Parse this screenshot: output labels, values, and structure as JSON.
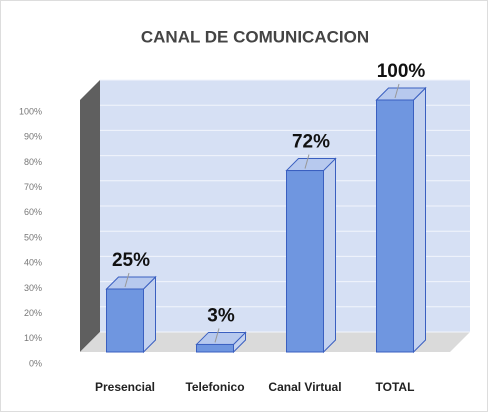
{
  "chart_data": {
    "type": "bar",
    "title": "CANAL DE COMUNICACION",
    "categories": [
      "Presencial",
      "Telefonico",
      "Canal Virtual",
      "TOTAL"
    ],
    "values": [
      25,
      3,
      72,
      100
    ],
    "value_labels": [
      "25%",
      "3%",
      "72%",
      "100%"
    ],
    "color": "#6f96e0",
    "ylim": [
      0,
      100
    ],
    "yticks": [
      {
        "value": 0,
        "label": "0%"
      },
      {
        "value": 10,
        "label": "10%"
      },
      {
        "value": 20,
        "label": "20%"
      },
      {
        "value": 30,
        "label": "30%"
      },
      {
        "value": 40,
        "label": "40%"
      },
      {
        "value": 50,
        "label": "50%"
      },
      {
        "value": 60,
        "label": "60%"
      },
      {
        "value": 70,
        "label": "70%"
      },
      {
        "value": 80,
        "label": "80%"
      },
      {
        "value": 90,
        "label": "90%"
      },
      {
        "value": 100,
        "label": "100%"
      }
    ],
    "grid": true
  }
}
